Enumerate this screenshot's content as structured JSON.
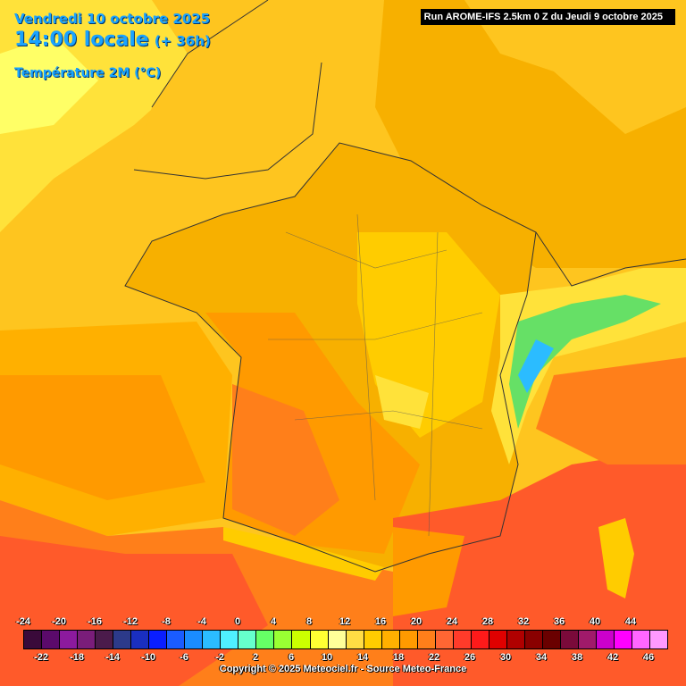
{
  "header": {
    "date": "Vendredi 10 octobre 2025",
    "time": "14:00 locale",
    "lead": "(+ 36h)",
    "variable": "Température 2M (°C)",
    "run": "Run AROME-IFS 2.5km 0 Z du Jeudi 9 octobre 2025"
  },
  "legend": {
    "top_labels": [
      "-24",
      "-20",
      "-16",
      "-12",
      "-8",
      "-4",
      "0",
      "4",
      "8",
      "12",
      "16",
      "20",
      "24",
      "28",
      "32",
      "36",
      "40",
      "44"
    ],
    "bottom_labels": [
      "-22",
      "-18",
      "-14",
      "-10",
      "-6",
      "-2",
      "2",
      "6",
      "10",
      "14",
      "18",
      "22",
      "26",
      "30",
      "34",
      "38",
      "42",
      "46"
    ],
    "colors": [
      "#3a0a3a",
      "#5b0a6b",
      "#8c1a9e",
      "#7a1d7a",
      "#4b1b4b",
      "#2c3a8a",
      "#1a2fc0",
      "#0a1eff",
      "#1a5cff",
      "#1a8cff",
      "#2bbcff",
      "#4ff0ff",
      "#66ffcc",
      "#66ff66",
      "#99ff33",
      "#ccff00",
      "#ffff33",
      "#ffff99",
      "#ffdd44",
      "#ffcc00",
      "#ffb000",
      "#ff9a00",
      "#ff7f1a",
      "#ff6633",
      "#ff3b2a",
      "#ff1a1a",
      "#e00000",
      "#b00000",
      "#8a0000",
      "#6a0000",
      "#7a0a3a",
      "#a01a6a",
      "#cc00cc",
      "#ff00ff",
      "#ff66ff",
      "#ff99ff"
    ]
  },
  "copyright": "Copyright © 2025 Meteociel.fr - Source Meteo-France",
  "colors": {
    "sea_north": "#fec51f",
    "land_base": "#f7b000",
    "warm": "#ff9a00",
    "hot": "#ff7f1a",
    "veryhot": "#ff5a2a",
    "cool": "#ffe23a",
    "cooler": "#ffff66",
    "alps_green": "#66e066",
    "alps_cyan": "#2bbcff",
    "border": "#333333"
  }
}
